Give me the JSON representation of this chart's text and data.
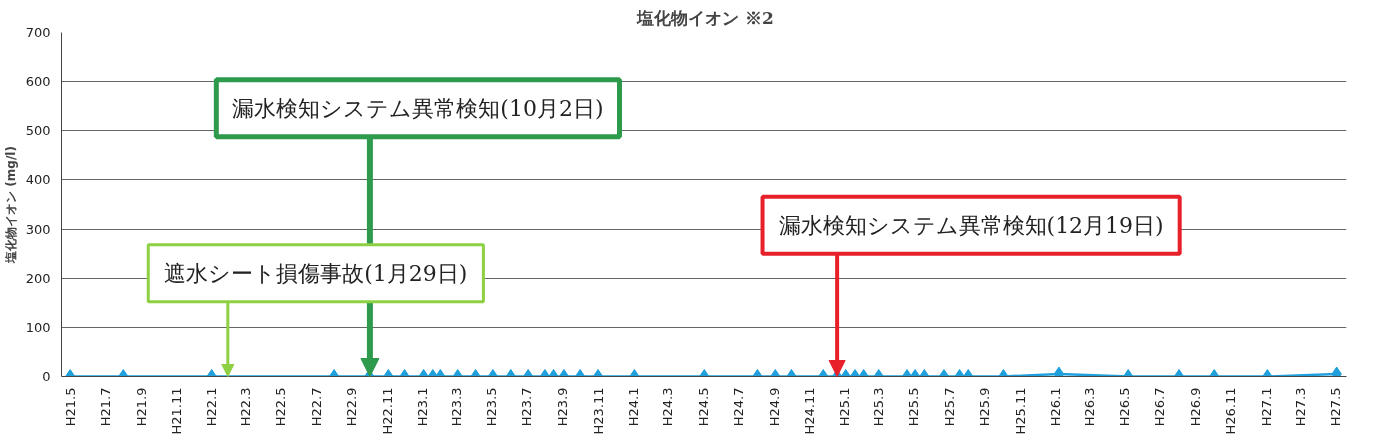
{
  "chart_data": {
    "type": "line",
    "title": "塩化物イオン ※2",
    "ylabel": "塩化物イオン (mg/l)",
    "x": [
      "2009-05-01",
      "2009-08-01",
      "2010-01-01",
      "2010-08-01",
      "2010-10-01",
      "2010-11-03",
      "2010-12-01",
      "2011-01-03",
      "2011-01-19",
      "2011-02-01",
      "2011-03-03",
      "2011-04-03",
      "2011-05-03",
      "2011-06-03",
      "2011-07-03",
      "2011-08-01",
      "2011-08-16",
      "2011-09-03",
      "2011-10-01",
      "2011-11-01",
      "2012-01-03",
      "2012-05-03",
      "2012-08-03",
      "2012-09-03",
      "2012-10-01",
      "2012-11-25",
      "2012-12-19",
      "2013-01-03",
      "2013-01-19",
      "2013-02-03",
      "2013-03-01",
      "2013-04-19",
      "2013-05-03",
      "2013-05-19",
      "2013-06-22",
      "2013-07-19",
      "2013-08-03",
      "2013-10-03",
      "2014-01-07",
      "2014-05-07",
      "2014-08-03",
      "2014-10-03",
      "2015-01-03",
      "2015-05-03"
    ],
    "series": [
      {
        "color": "#1f9fdc",
        "values": [
          0,
          0,
          0,
          0,
          0,
          0,
          0,
          0,
          0,
          0,
          0,
          0,
          0,
          0,
          0,
          0,
          0,
          0,
          0,
          0,
          0,
          0,
          0,
          0,
          0,
          0,
          0,
          0,
          0,
          0,
          0,
          0,
          0,
          0,
          0,
          0,
          0,
          0,
          5,
          0,
          0,
          0,
          0,
          5
        ]
      }
    ],
    "marker": "diamond",
    "line_style": "solid",
    "grid": "y",
    "ylim": [
      0,
      700
    ],
    "yticks": [
      0,
      100,
      200,
      300,
      400,
      500,
      600,
      700
    ],
    "xlim": [
      "2009-04-16",
      "2015-05-20"
    ],
    "xticks": [
      {
        "value": "2009-05-01",
        "label": "H21.5"
      },
      {
        "value": "2009-07-01",
        "label": "H21.7"
      },
      {
        "value": "2009-09-01",
        "label": "H21.9"
      },
      {
        "value": "2009-11-01",
        "label": "H21.11"
      },
      {
        "value": "2010-01-01",
        "label": "H22.1"
      },
      {
        "value": "2010-03-01",
        "label": "H22.3"
      },
      {
        "value": "2010-05-01",
        "label": "H22.5"
      },
      {
        "value": "2010-07-01",
        "label": "H22.7"
      },
      {
        "value": "2010-09-01",
        "label": "H22.9"
      },
      {
        "value": "2010-11-01",
        "label": "H22.11"
      },
      {
        "value": "2011-01-01",
        "label": "H23.1"
      },
      {
        "value": "2011-03-01",
        "label": "H23.3"
      },
      {
        "value": "2011-05-01",
        "label": "H23.5"
      },
      {
        "value": "2011-07-01",
        "label": "H23.7"
      },
      {
        "value": "2011-09-01",
        "label": "H23.9"
      },
      {
        "value": "2011-11-01",
        "label": "H23.11"
      },
      {
        "value": "2012-01-01",
        "label": "H24.1"
      },
      {
        "value": "2012-03-01",
        "label": "H24.3"
      },
      {
        "value": "2012-05-01",
        "label": "H24.5"
      },
      {
        "value": "2012-07-01",
        "label": "H24.7"
      },
      {
        "value": "2012-09-01",
        "label": "H24.9"
      },
      {
        "value": "2012-11-01",
        "label": "H24.11"
      },
      {
        "value": "2013-01-01",
        "label": "H25.1"
      },
      {
        "value": "2013-03-01",
        "label": "H25.3"
      },
      {
        "value": "2013-05-01",
        "label": "H25.5"
      },
      {
        "value": "2013-07-01",
        "label": "H25.7"
      },
      {
        "value": "2013-09-01",
        "label": "H25.9"
      },
      {
        "value": "2013-11-01",
        "label": "H25.11"
      },
      {
        "value": "2014-01-01",
        "label": "H26.1"
      },
      {
        "value": "2014-03-01",
        "label": "H26.3"
      },
      {
        "value": "2014-05-01",
        "label": "H26.5"
      },
      {
        "value": "2014-07-01",
        "label": "H26.7"
      },
      {
        "value": "2014-09-01",
        "label": "H26.9"
      },
      {
        "value": "2014-11-01",
        "label": "H26.11"
      },
      {
        "value": "2015-01-01",
        "label": "H27.1"
      },
      {
        "value": "2015-03-01",
        "label": "H27.3"
      },
      {
        "value": "2015-05-01",
        "label": "H27.5"
      }
    ],
    "annotations": [
      {
        "text": "遮水シート損傷事故(1月29日)",
        "x": "2010-01-29",
        "y": 0
      },
      {
        "text": "漏水検知システム異常検知(10月2日)",
        "x": "2010-10-02",
        "y": 0
      },
      {
        "text": "漏水検知システム異常検知(12月19日)",
        "x": "2012-12-19",
        "y": 0
      }
    ]
  }
}
